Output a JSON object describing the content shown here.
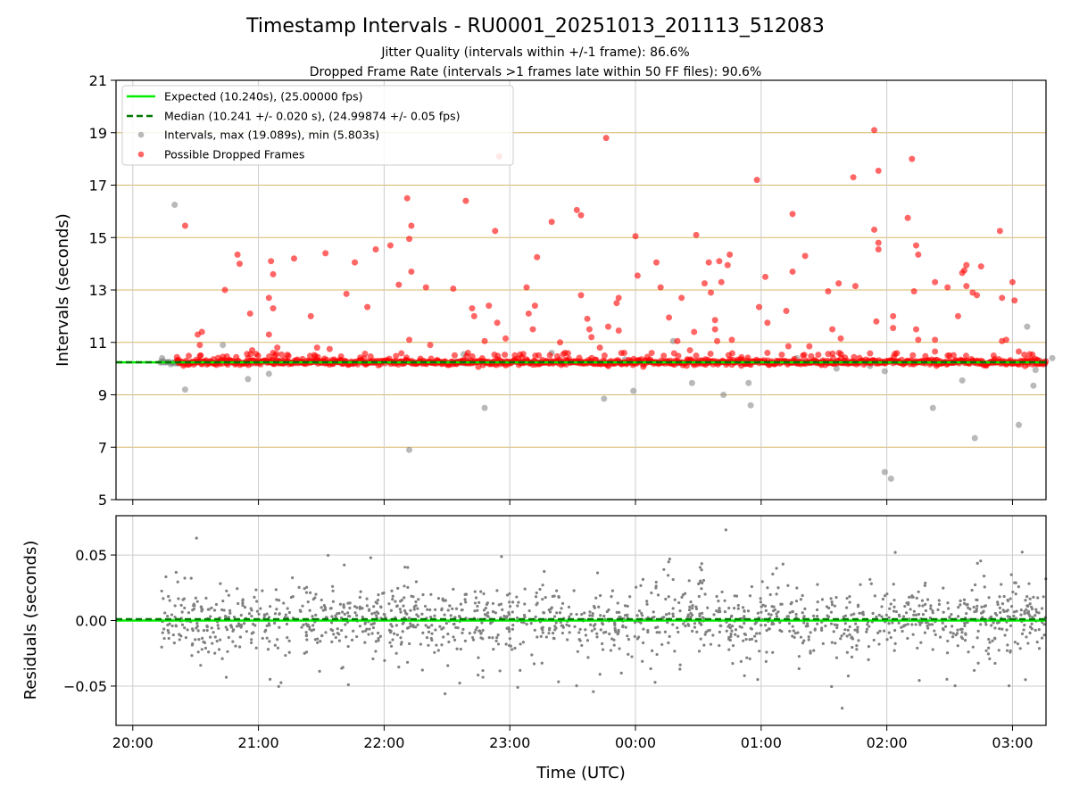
{
  "chart_data": [
    {
      "type": "scatter",
      "title": "Timestamp Intervals - RU0001_20251013_201113_512083",
      "subtitle_1": "Jitter Quality (intervals within +/-1 frame): 86.6%",
      "subtitle_2": "Dropped Frame Rate (intervals >1 frames late within 50 FF files): 90.6%",
      "ylabel": "Intervals (seconds)",
      "xlabel": "",
      "x_unit": "time (UTC)",
      "xlim": [
        "19:52",
        "03:16"
      ],
      "ylim": [
        5,
        21
      ],
      "yticks": [
        5,
        7,
        9,
        11,
        13,
        15,
        17,
        19,
        21
      ],
      "xticks": [
        "20:00",
        "21:00",
        "22:00",
        "23:00",
        "00:00",
        "01:00",
        "02:00",
        "03:00"
      ],
      "grid": "on",
      "legend_position": "upper-left",
      "reference_lines": [
        {
          "name": "Expected (10.240s), (25.00000 fps)",
          "value": 10.24,
          "style": "solid",
          "color": "#00ee00"
        },
        {
          "name": "Median (10.241 +/- 0.020 s), (24.99874 +/- 0.05 fps)",
          "value": 10.241,
          "style": "dashed",
          "color": "#007700"
        }
      ],
      "series": [
        {
          "name": "Intervals, max (19.089s), min (5.803s)",
          "color": "#808080",
          "baseline": 10.24,
          "x_range": [
            "20:13",
            "03:16"
          ],
          "outliers": [
            {
              "x": "20:14",
              "y": 10.4
            },
            {
              "x": "20:20",
              "y": 16.25
            },
            {
              "x": "20:25",
              "y": 9.2
            },
            {
              "x": "20:43",
              "y": 10.9
            },
            {
              "x": "20:55",
              "y": 9.6
            },
            {
              "x": "21:05",
              "y": 9.8
            },
            {
              "x": "21:10",
              "y": 10.3
            },
            {
              "x": "21:45",
              "y": 10.2
            },
            {
              "x": "22:12",
              "y": 6.9
            },
            {
              "x": "22:38",
              "y": 10.55
            },
            {
              "x": "22:48",
              "y": 8.5
            },
            {
              "x": "23:55",
              "y": 10.35
            },
            {
              "x": "23:20",
              "y": 10.6
            },
            {
              "x": "23:45",
              "y": 8.85
            },
            {
              "x": "23:59",
              "y": 9.15
            },
            {
              "x": "00:18",
              "y": 11.05
            },
            {
              "x": "00:20",
              "y": 10.2
            },
            {
              "x": "00:27",
              "y": 9.45
            },
            {
              "x": "00:42",
              "y": 9.0
            },
            {
              "x": "00:54",
              "y": 9.45
            },
            {
              "x": "00:55",
              "y": 8.6
            },
            {
              "x": "01:17",
              "y": 10.4
            },
            {
              "x": "01:36",
              "y": 10.0
            },
            {
              "x": "01:52",
              "y": 10.1
            },
            {
              "x": "01:59",
              "y": 9.9
            },
            {
              "x": "01:59",
              "y": 6.05
            },
            {
              "x": "02:02",
              "y": 5.8
            },
            {
              "x": "02:22",
              "y": 8.5
            },
            {
              "x": "02:36",
              "y": 9.55
            },
            {
              "x": "02:42",
              "y": 7.35
            },
            {
              "x": "03:07",
              "y": 11.6
            },
            {
              "x": "03:10",
              "y": 9.35
            },
            {
              "x": "03:11",
              "y": 9.95
            },
            {
              "x": "03:13",
              "y": 10.3
            },
            {
              "x": "03:13",
              "y": 10.2
            },
            {
              "x": "03:03",
              "y": 7.85
            },
            {
              "x": "03:19",
              "y": 10.4
            }
          ]
        },
        {
          "name": "Possible Dropped Frames",
          "color": "#ff0000",
          "baseline": 10.24,
          "x_range": [
            "20:21",
            "03:16"
          ],
          "outliers": [
            {
              "x": "20:25",
              "y": 15.45
            },
            {
              "x": "20:31",
              "y": 11.3
            },
            {
              "x": "20:32",
              "y": 10.9
            },
            {
              "x": "20:33",
              "y": 11.4
            },
            {
              "x": "20:44",
              "y": 13.0
            },
            {
              "x": "20:50",
              "y": 14.35
            },
            {
              "x": "20:51",
              "y": 14.0
            },
            {
              "x": "20:56",
              "y": 12.1
            },
            {
              "x": "20:57",
              "y": 10.7
            },
            {
              "x": "21:05",
              "y": 12.7
            },
            {
              "x": "21:06",
              "y": 14.1
            },
            {
              "x": "21:07",
              "y": 13.6
            },
            {
              "x": "21:07",
              "y": 12.3
            },
            {
              "x": "21:05",
              "y": 11.3
            },
            {
              "x": "21:07",
              "y": 10.6
            },
            {
              "x": "21:09",
              "y": 10.8
            },
            {
              "x": "21:17",
              "y": 14.2
            },
            {
              "x": "21:25",
              "y": 12.0
            },
            {
              "x": "21:28",
              "y": 10.8
            },
            {
              "x": "21:32",
              "y": 14.4
            },
            {
              "x": "21:34",
              "y": 10.75
            },
            {
              "x": "21:42",
              "y": 12.85
            },
            {
              "x": "21:46",
              "y": 14.05
            },
            {
              "x": "21:52",
              "y": 12.35
            },
            {
              "x": "21:56",
              "y": 14.55
            },
            {
              "x": "22:03",
              "y": 14.7
            },
            {
              "x": "22:07",
              "y": 13.2
            },
            {
              "x": "22:11",
              "y": 16.5
            },
            {
              "x": "22:12",
              "y": 14.95
            },
            {
              "x": "22:13",
              "y": 15.45
            },
            {
              "x": "22:13",
              "y": 13.7
            },
            {
              "x": "22:12",
              "y": 11.1
            },
            {
              "x": "22:20",
              "y": 13.1
            },
            {
              "x": "22:22",
              "y": 10.9
            },
            {
              "x": "22:33",
              "y": 13.05
            },
            {
              "x": "22:39",
              "y": 16.4
            },
            {
              "x": "22:40",
              "y": 10.6
            },
            {
              "x": "22:42",
              "y": 12.3
            },
            {
              "x": "22:43",
              "y": 12.0
            },
            {
              "x": "22:48",
              "y": 11.05
            },
            {
              "x": "22:50",
              "y": 12.4
            },
            {
              "x": "22:53",
              "y": 15.25
            },
            {
              "x": "22:54",
              "y": 11.75
            },
            {
              "x": "22:58",
              "y": 11.15
            },
            {
              "x": "23:08",
              "y": 13.1
            },
            {
              "x": "23:09",
              "y": 12.1
            },
            {
              "x": "23:11",
              "y": 11.5
            },
            {
              "x": "23:12",
              "y": 12.4
            },
            {
              "x": "23:13",
              "y": 14.25
            },
            {
              "x": "23:20",
              "y": 15.6
            },
            {
              "x": "23:24",
              "y": 11.0
            },
            {
              "x": "23:32",
              "y": 16.05
            },
            {
              "x": "23:34",
              "y": 15.85
            },
            {
              "x": "23:34",
              "y": 12.8
            },
            {
              "x": "23:37",
              "y": 11.9
            },
            {
              "x": "23:38",
              "y": 11.5
            },
            {
              "x": "23:39",
              "y": 11.2
            },
            {
              "x": "23:43",
              "y": 10.8
            },
            {
              "x": "23:46",
              "y": 18.8
            },
            {
              "x": "23:47",
              "y": 11.6
            },
            {
              "x": "23:51",
              "y": 12.5
            },
            {
              "x": "23:52",
              "y": 12.7
            },
            {
              "x": "23:52",
              "y": 11.45
            },
            {
              "x": "00:00",
              "y": 15.05
            },
            {
              "x": "00:01",
              "y": 13.55
            },
            {
              "x": "00:10",
              "y": 14.05
            },
            {
              "x": "00:12",
              "y": 13.1
            },
            {
              "x": "00:16",
              "y": 11.95
            },
            {
              "x": "00:20",
              "y": 11.05
            },
            {
              "x": "00:22",
              "y": 12.7
            },
            {
              "x": "00:26",
              "y": 10.7
            },
            {
              "x": "00:28",
              "y": 11.4
            },
            {
              "x": "00:29",
              "y": 15.1
            },
            {
              "x": "00:33",
              "y": 13.25
            },
            {
              "x": "00:35",
              "y": 14.05
            },
            {
              "x": "00:36",
              "y": 12.9
            },
            {
              "x": "00:38",
              "y": 11.85
            },
            {
              "x": "00:38",
              "y": 11.5
            },
            {
              "x": "00:39",
              "y": 11.05
            },
            {
              "x": "00:40",
              "y": 14.1
            },
            {
              "x": "00:41",
              "y": 13.3
            },
            {
              "x": "00:44",
              "y": 13.95
            },
            {
              "x": "00:45",
              "y": 14.35
            },
            {
              "x": "00:46",
              "y": 11.1
            },
            {
              "x": "00:58",
              "y": 17.2
            },
            {
              "x": "00:59",
              "y": 12.35
            },
            {
              "x": "01:02",
              "y": 13.5
            },
            {
              "x": "01:03",
              "y": 11.75
            },
            {
              "x": "01:03",
              "y": 10.6
            },
            {
              "x": "01:12",
              "y": 12.2
            },
            {
              "x": "01:15",
              "y": 15.9
            },
            {
              "x": "01:15",
              "y": 13.7
            },
            {
              "x": "01:13",
              "y": 10.85
            },
            {
              "x": "01:20",
              "y": 10.5
            },
            {
              "x": "01:21",
              "y": 14.3
            },
            {
              "x": "01:23",
              "y": 10.85
            },
            {
              "x": "01:32",
              "y": 12.95
            },
            {
              "x": "01:34",
              "y": 11.5
            },
            {
              "x": "01:37",
              "y": 13.25
            },
            {
              "x": "01:38",
              "y": 11.15
            },
            {
              "x": "01:44",
              "y": 17.3
            },
            {
              "x": "01:45",
              "y": 13.15
            },
            {
              "x": "01:54",
              "y": 19.1
            },
            {
              "x": "01:54",
              "y": 15.3
            },
            {
              "x": "01:55",
              "y": 11.8
            },
            {
              "x": "01:56",
              "y": 14.8
            },
            {
              "x": "01:56",
              "y": 14.55
            },
            {
              "x": "01:56",
              "y": 17.55
            },
            {
              "x": "02:03",
              "y": 12.0
            },
            {
              "x": "02:03",
              "y": 11.55
            },
            {
              "x": "02:10",
              "y": 15.75
            },
            {
              "x": "02:12",
              "y": 18.0
            },
            {
              "x": "02:13",
              "y": 12.95
            },
            {
              "x": "02:14",
              "y": 14.7
            },
            {
              "x": "02:14",
              "y": 11.5
            },
            {
              "x": "02:15",
              "y": 14.35
            },
            {
              "x": "02:15",
              "y": 11.1
            },
            {
              "x": "02:23",
              "y": 13.3
            },
            {
              "x": "02:23",
              "y": 11.1
            },
            {
              "x": "02:23",
              "y": 10.65
            },
            {
              "x": "02:29",
              "y": 13.1
            },
            {
              "x": "02:34",
              "y": 12.0
            },
            {
              "x": "02:36",
              "y": 13.65
            },
            {
              "x": "02:37",
              "y": 13.75
            },
            {
              "x": "02:38",
              "y": 13.95
            },
            {
              "x": "02:38",
              "y": 13.15
            },
            {
              "x": "02:41",
              "y": 12.9
            },
            {
              "x": "02:43",
              "y": 12.8
            },
            {
              "x": "02:45",
              "y": 13.9
            },
            {
              "x": "02:45",
              "y": 10.3
            },
            {
              "x": "02:51",
              "y": 10.5
            },
            {
              "x": "02:54",
              "y": 15.25
            },
            {
              "x": "02:55",
              "y": 12.7
            },
            {
              "x": "02:55",
              "y": 11.05
            },
            {
              "x": "02:57",
              "y": 11.1
            },
            {
              "x": "03:00",
              "y": 13.3
            },
            {
              "x": "03:01",
              "y": 12.6
            },
            {
              "x": "03:03",
              "y": 10.65
            },
            {
              "x": "22:55",
              "y": 18.1
            }
          ]
        }
      ]
    },
    {
      "type": "scatter",
      "title": "",
      "ylabel": "Residuals (seconds)",
      "xlabel": "Time (UTC)",
      "xlim": [
        "19:52",
        "03:16"
      ],
      "ylim": [
        -0.08,
        0.08
      ],
      "yticks": [
        -0.05,
        0.0,
        0.05
      ],
      "ytick_labels": [
        "−0.05",
        "0.00",
        "0.05"
      ],
      "xticks": [
        "20:00",
        "21:00",
        "22:00",
        "23:00",
        "00:00",
        "01:00",
        "02:00",
        "03:00"
      ],
      "grid": "on",
      "reference_lines": [
        {
          "value": 0.0,
          "style": "solid",
          "color": "#00ee00"
        },
        {
          "value": 0.001,
          "style": "dashed",
          "color": "#007700"
        }
      ],
      "series": [
        {
          "name": "",
          "color": "#808080",
          "x_range": [
            "20:13",
            "03:16"
          ],
          "spread_sd": 0.02,
          "points_shown": 1500
        }
      ]
    }
  ]
}
